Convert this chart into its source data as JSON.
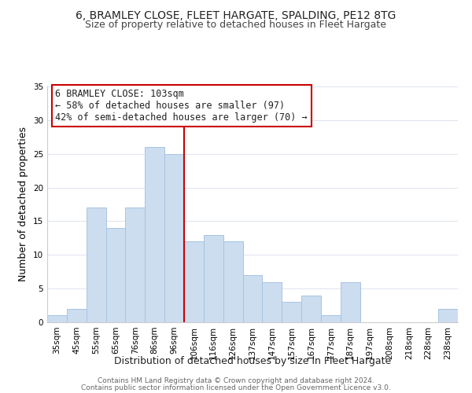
{
  "title": "6, BRAMLEY CLOSE, FLEET HARGATE, SPALDING, PE12 8TG",
  "subtitle": "Size of property relative to detached houses in Fleet Hargate",
  "xlabel": "Distribution of detached houses by size in Fleet Hargate",
  "ylabel": "Number of detached properties",
  "bar_labels": [
    "35sqm",
    "45sqm",
    "55sqm",
    "65sqm",
    "76sqm",
    "86sqm",
    "96sqm",
    "106sqm",
    "116sqm",
    "126sqm",
    "137sqm",
    "147sqm",
    "157sqm",
    "167sqm",
    "177sqm",
    "187sqm",
    "197sqm",
    "208sqm",
    "218sqm",
    "228sqm",
    "238sqm"
  ],
  "bar_values": [
    1,
    2,
    17,
    14,
    17,
    26,
    25,
    12,
    13,
    12,
    7,
    6,
    3,
    4,
    1,
    6,
    0,
    0,
    0,
    0,
    2
  ],
  "bar_color": "#ccddf0",
  "bar_edge_color": "#a8c4e0",
  "vline_color": "#cc0000",
  "annotation_text": "6 BRAMLEY CLOSE: 103sqm\n← 58% of detached houses are smaller (97)\n42% of semi-detached houses are larger (70) →",
  "annotation_box_color": "#ffffff",
  "annotation_box_edge": "#cc0000",
  "ylim": [
    0,
    35
  ],
  "yticks": [
    0,
    5,
    10,
    15,
    20,
    25,
    30,
    35
  ],
  "footer1": "Contains HM Land Registry data © Crown copyright and database right 2024.",
  "footer2": "Contains public sector information licensed under the Open Government Licence v3.0.",
  "title_fontsize": 10,
  "subtitle_fontsize": 9,
  "axis_label_fontsize": 9,
  "tick_fontsize": 7.5,
  "annotation_fontsize": 8.5,
  "footer_fontsize": 6.5
}
